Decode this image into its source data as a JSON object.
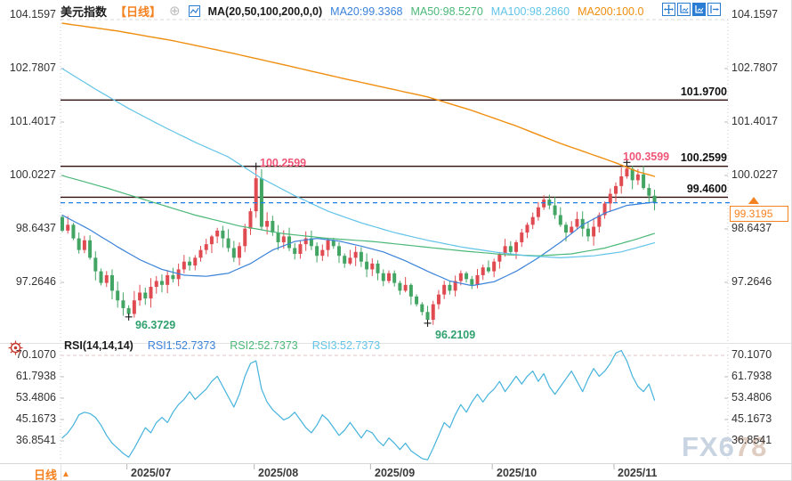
{
  "header": {
    "title": "美元指数",
    "period": "【日线】",
    "ma_settings": "MA(20,50,100,200,0,0)",
    "ma20_label": "MA20:99.3368",
    "ma50_label": "MA50:98.5270",
    "ma100_label": "MA100:98.2860",
    "ma200_label": "MA200:100.0",
    "toolbar_icons": [
      "crosshair-move-icon",
      "axis-scale-icon",
      "axis-fit-icon",
      "pan-right-icon"
    ]
  },
  "rsi_header": {
    "settings": "RSI(14,14,14)",
    "rsi1_label": "RSI1:52.7373",
    "rsi2_label": "RSI2:52.7373",
    "rsi3_label": "RSI3:52.7373"
  },
  "axes": {
    "main": [
      "104.1597",
      "102.7807",
      "101.4017",
      "100.0227",
      "98.6437",
      "97.2646"
    ],
    "rsi": [
      "70.1070",
      "61.7938",
      "53.4806",
      "45.1673",
      "36.8541"
    ],
    "dates": [
      "2025/07",
      "2025/08",
      "2025/09",
      "2025/10",
      "2025/11"
    ]
  },
  "levels": [
    {
      "label": "101.9700",
      "price": 101.97
    },
    {
      "label": "100.2599",
      "price": 100.2599
    },
    {
      "label": "99.4600",
      "price": 99.46
    }
  ],
  "annotations": {
    "high1": "100.2599",
    "high2": "100.3599",
    "low1": "96.3729",
    "low2": "96.2109"
  },
  "price_box": {
    "value": "99.3195"
  },
  "footer": {
    "period": "日线"
  },
  "watermark": {
    "part1": "FX6",
    "part2": "78"
  },
  "chart_data": {
    "type": "candlestick",
    "title": "美元指数 日线 (US Dollar Index, daily)",
    "y_ticks": [
      104.1597,
      102.7807,
      101.4017,
      100.0227,
      98.6437,
      97.2646
    ],
    "rsi_ticks": [
      70.107,
      61.7938,
      53.4806,
      45.1673,
      36.8541
    ],
    "ylim": [
      96.0,
      104.5
    ],
    "open_seed": 98.95,
    "closes": [
      98.6,
      98.75,
      98.4,
      98.1,
      98.35,
      97.9,
      97.55,
      97.25,
      97.45,
      97.05,
      96.8,
      96.6,
      96.45,
      96.8,
      97.0,
      96.85,
      97.15,
      97.3,
      97.2,
      97.45,
      97.35,
      97.6,
      97.8,
      97.7,
      97.9,
      98.1,
      98.25,
      98.45,
      98.6,
      98.4,
      98.15,
      97.9,
      98.2,
      98.65,
      99.1,
      99.95,
      98.7,
      98.85,
      98.55,
      98.3,
      98.45,
      98.15,
      98.0,
      98.25,
      98.4,
      98.2,
      97.95,
      98.1,
      98.35,
      98.2,
      97.95,
      97.75,
      97.9,
      98.05,
      97.8,
      97.6,
      97.75,
      97.5,
      97.3,
      97.5,
      97.25,
      97.05,
      97.2,
      96.9,
      96.7,
      96.5,
      96.3,
      96.7,
      96.95,
      97.2,
      97.05,
      97.3,
      97.5,
      97.35,
      97.2,
      97.45,
      97.65,
      97.55,
      97.8,
      98.0,
      98.2,
      98.05,
      98.3,
      98.55,
      98.75,
      98.95,
      99.2,
      99.4,
      99.25,
      99.0,
      98.75,
      98.55,
      98.7,
      98.9,
      98.65,
      98.45,
      98.7,
      99.0,
      99.3,
      99.55,
      99.75,
      100.0,
      100.2,
      99.9,
      100.05,
      99.7,
      99.5,
      99.3195
    ],
    "extremes": [
      {
        "bar": 12,
        "type": "low",
        "price": 96.3729
      },
      {
        "bar": 35,
        "type": "high",
        "price": 100.2599
      },
      {
        "bar": 66,
        "type": "low",
        "price": 96.2109
      },
      {
        "bar": 102,
        "type": "high",
        "price": 100.3599
      }
    ],
    "last_price": 99.3195,
    "ma": {
      "ma20": {
        "value": 99.3368,
        "anchors": [
          [
            0,
            99.0
          ],
          [
            5,
            98.62
          ],
          [
            10,
            98.18
          ],
          [
            14,
            97.85
          ],
          [
            18,
            97.6
          ],
          [
            22,
            97.45
          ],
          [
            26,
            97.42
          ],
          [
            30,
            97.5
          ],
          [
            34,
            97.75
          ],
          [
            38,
            98.1
          ],
          [
            42,
            98.32
          ],
          [
            46,
            98.4
          ],
          [
            50,
            98.33
          ],
          [
            54,
            98.2
          ],
          [
            58,
            98.05
          ],
          [
            62,
            97.82
          ],
          [
            66,
            97.55
          ],
          [
            70,
            97.3
          ],
          [
            74,
            97.18
          ],
          [
            78,
            97.28
          ],
          [
            82,
            97.55
          ],
          [
            86,
            97.9
          ],
          [
            90,
            98.3
          ],
          [
            94,
            98.75
          ],
          [
            98,
            99.05
          ],
          [
            102,
            99.25
          ],
          [
            107,
            99.3368
          ]
        ]
      },
      "ma50": {
        "value": 98.527,
        "anchors": [
          [
            0,
            100.02
          ],
          [
            8,
            99.7
          ],
          [
            16,
            99.35
          ],
          [
            24,
            99.0
          ],
          [
            32,
            98.72
          ],
          [
            40,
            98.52
          ],
          [
            48,
            98.4
          ],
          [
            56,
            98.32
          ],
          [
            64,
            98.2
          ],
          [
            72,
            98.08
          ],
          [
            80,
            97.98
          ],
          [
            86,
            97.95
          ],
          [
            92,
            98.0
          ],
          [
            98,
            98.15
          ],
          [
            103,
            98.35
          ],
          [
            107,
            98.527
          ]
        ]
      },
      "ma100": {
        "value": 98.286,
        "anchors": [
          [
            0,
            102.78
          ],
          [
            6,
            102.25
          ],
          [
            12,
            101.75
          ],
          [
            18,
            101.3
          ],
          [
            24,
            100.88
          ],
          [
            30,
            100.5
          ],
          [
            36,
            99.95
          ],
          [
            42,
            99.5
          ],
          [
            48,
            99.1
          ],
          [
            54,
            98.8
          ],
          [
            60,
            98.55
          ],
          [
            66,
            98.35
          ],
          [
            72,
            98.18
          ],
          [
            78,
            98.05
          ],
          [
            84,
            97.95
          ],
          [
            90,
            97.9
          ],
          [
            96,
            97.95
          ],
          [
            101,
            98.05
          ],
          [
            107,
            98.286
          ]
        ]
      },
      "ma200": {
        "value": 100.0,
        "anchors": [
          [
            0,
            103.95
          ],
          [
            10,
            103.75
          ],
          [
            20,
            103.5
          ],
          [
            30,
            103.2
          ],
          [
            40,
            102.88
          ],
          [
            50,
            102.55
          ],
          [
            58,
            102.3
          ],
          [
            66,
            102.05
          ],
          [
            74,
            101.7
          ],
          [
            82,
            101.3
          ],
          [
            90,
            100.85
          ],
          [
            96,
            100.55
          ],
          [
            100,
            100.35
          ],
          [
            104,
            100.12
          ],
          [
            107,
            100.0
          ]
        ]
      }
    },
    "rsi": {
      "overbought": 70.107,
      "values": [
        38,
        40,
        43,
        47,
        48,
        47.5,
        46,
        43,
        39,
        36,
        34,
        32,
        30.5,
        34,
        38,
        42,
        40,
        44,
        46,
        44,
        48,
        51,
        53,
        56,
        53,
        55,
        57,
        60,
        62,
        58,
        54,
        50,
        55,
        62,
        67,
        68,
        57,
        52,
        49,
        47,
        45,
        46,
        48,
        45,
        42,
        40,
        43,
        47,
        45,
        42,
        39,
        41,
        44,
        41,
        38,
        41,
        40,
        37,
        35,
        38,
        36,
        33.5,
        36,
        33,
        31.5,
        30,
        29.5,
        34,
        39,
        44,
        42,
        47,
        51,
        48,
        52,
        55,
        52,
        55,
        57,
        60,
        56,
        59,
        62,
        59,
        62,
        64,
        60,
        63,
        58,
        55,
        58,
        61,
        64,
        60,
        56,
        61,
        65,
        62,
        64,
        67,
        71,
        72,
        68,
        62,
        58,
        56,
        59,
        52.7
      ]
    },
    "months": {
      "bars": [
        12,
        35,
        56,
        78,
        100
      ]
    },
    "colors": {
      "up": "#e04b52",
      "down": "#43a564",
      "ma20": "#3b82d9",
      "ma50": "#4bb878",
      "ma100": "#62c4e8",
      "ma200": "#ef8e0e",
      "rsi_line": "#45b3dc",
      "price_line": "#1a7ee6",
      "level_line": "#30110f",
      "high_label": "#f05578",
      "low_label": "#2fa06e",
      "ui_orange": "#f58220",
      "toolbar_blue": "#2b7cd3",
      "watermark1": "#c9d4e2",
      "watermark2": "#e0cdc2"
    }
  }
}
